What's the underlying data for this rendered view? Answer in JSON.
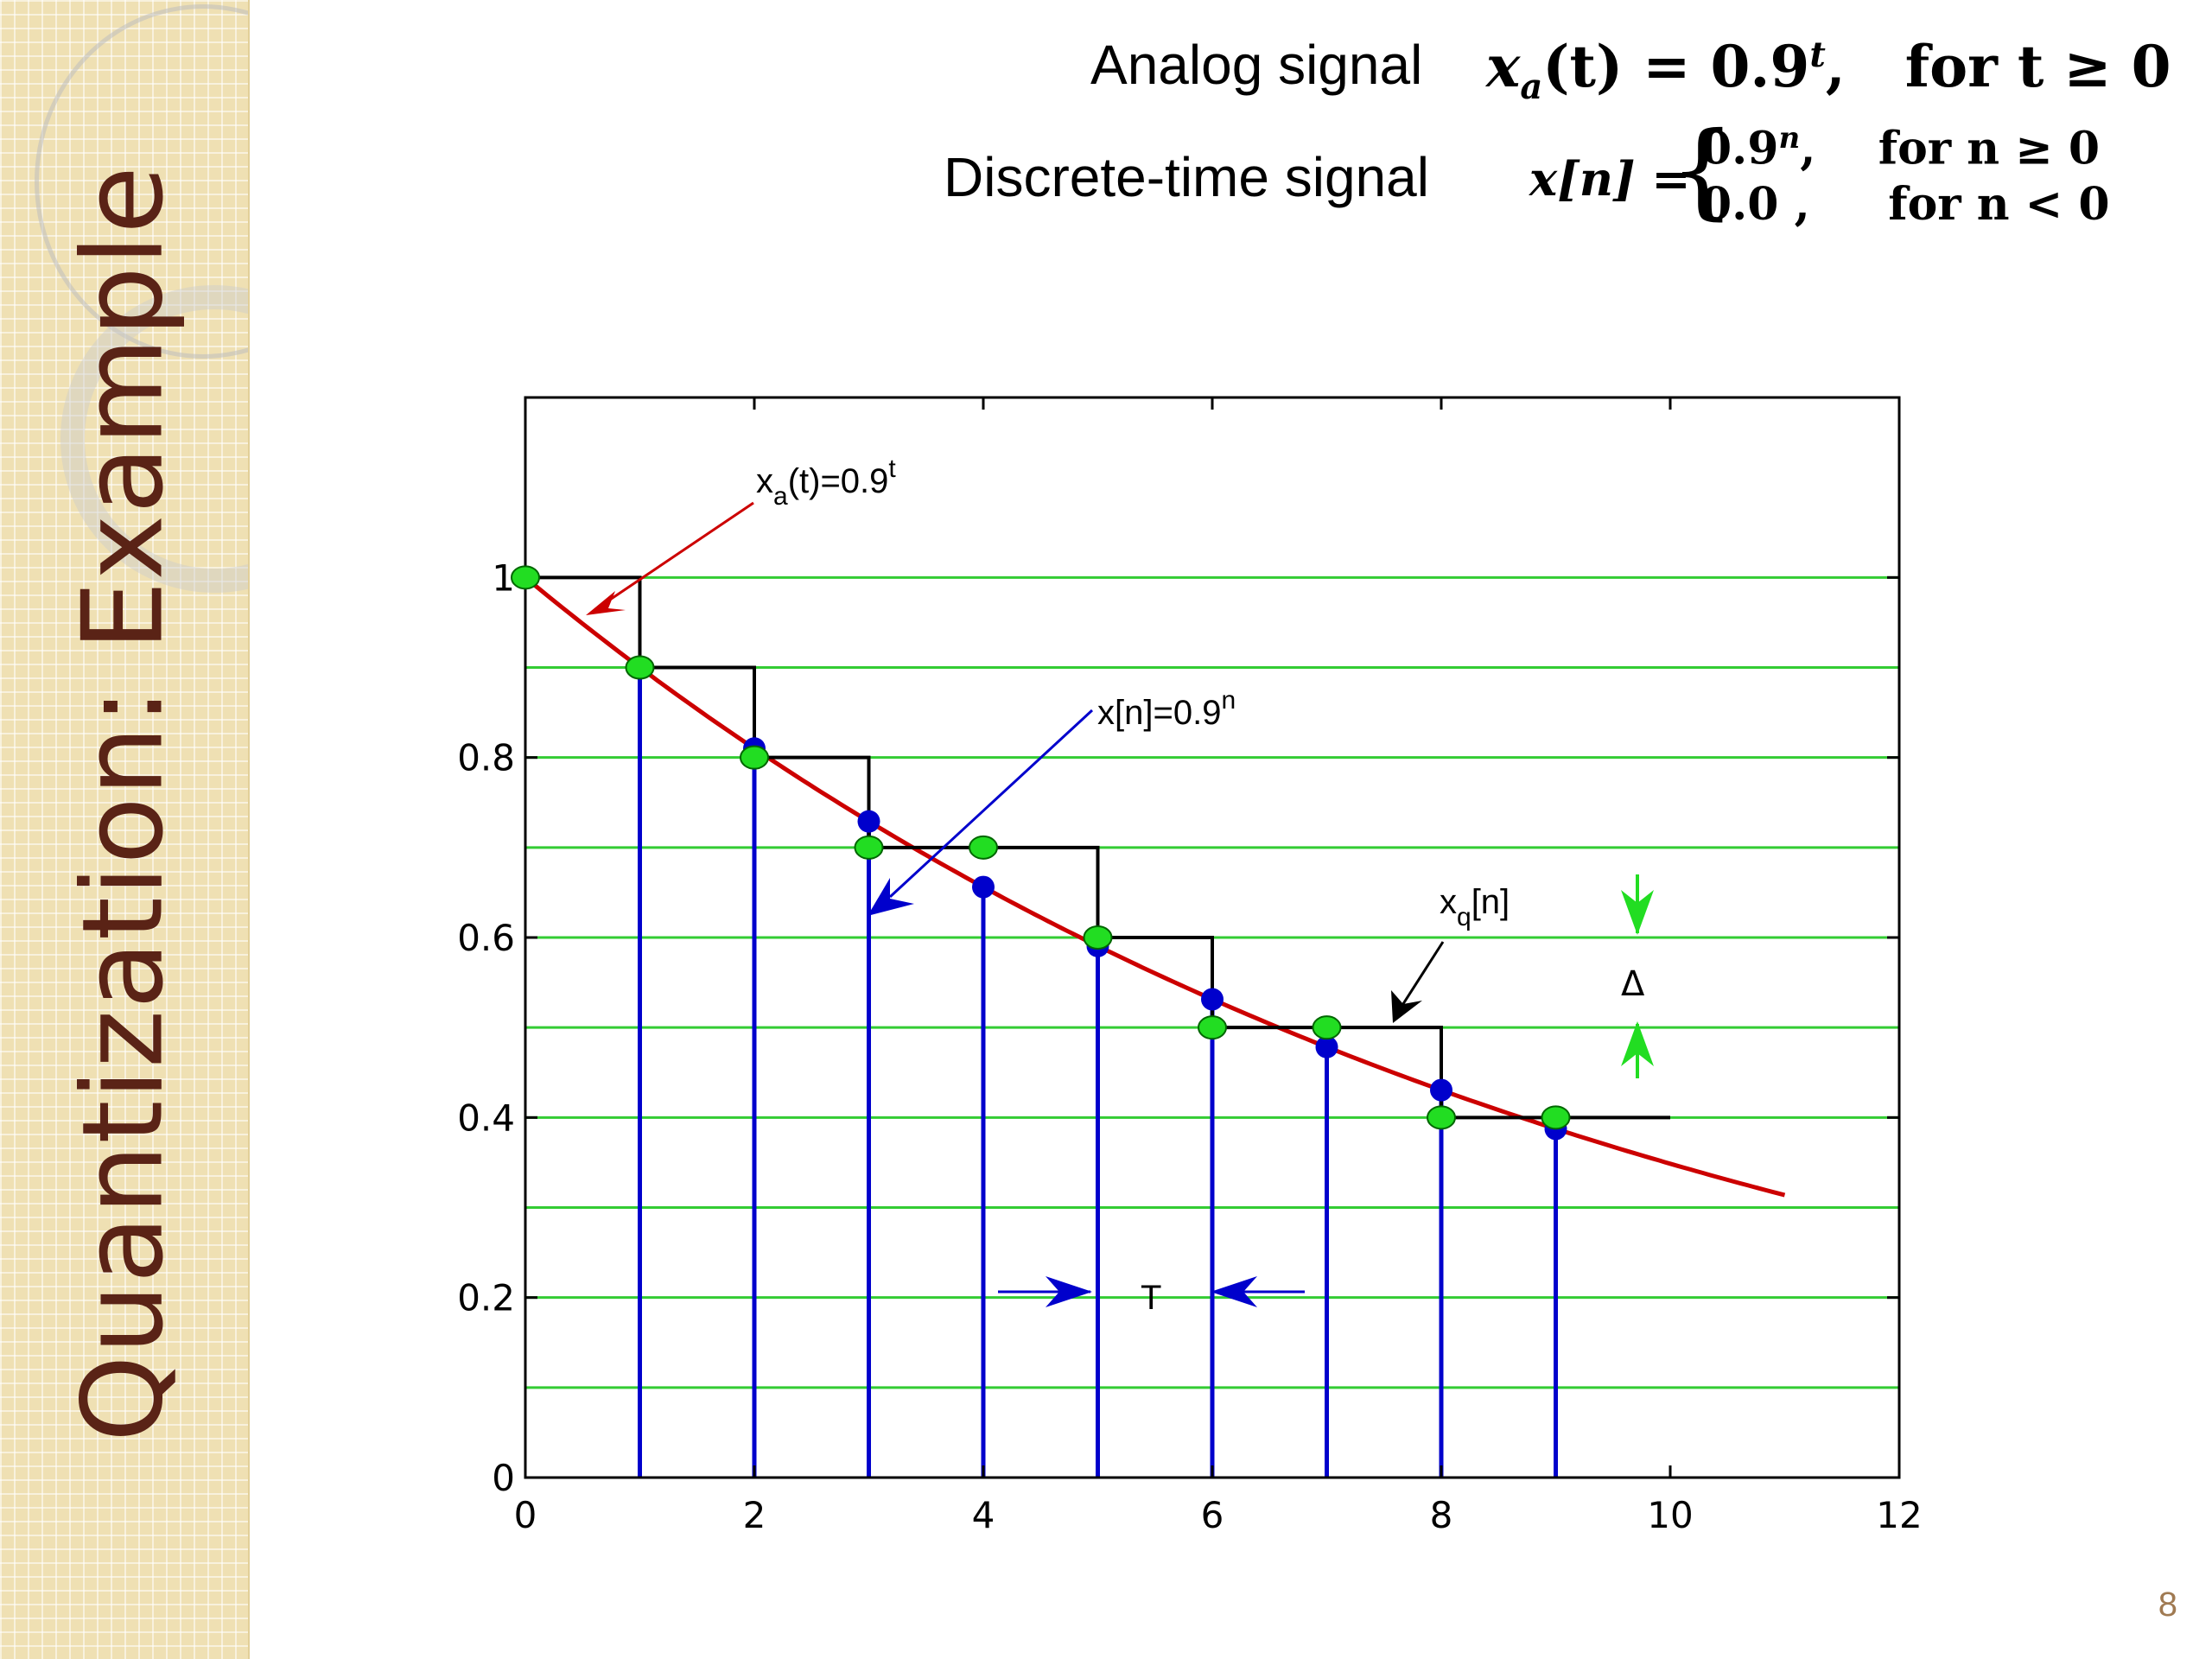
{
  "slide": {
    "title": "Quantization: Example",
    "page_number": "8",
    "analog_label": "Analog signal",
    "analog_eq": {
      "lhs": "x",
      "sub": "a",
      "arg": "(t) = 0.9",
      "sup": "t",
      "cond": "for t ≥ 0"
    },
    "discrete_label": "Discrete-time signal",
    "discrete_eq": {
      "lhs": "x[n] =",
      "case1_val": "0.9",
      "case1_sup": "n",
      "case1_cond": "for n ≥ 0",
      "case2_val": "0.0 ,",
      "case2_cond": "for n < 0"
    }
  },
  "colors": {
    "analog": "#cc0000",
    "discrete": "#0000cc",
    "quantized": "#000000",
    "levels": "#33cc33",
    "samples_q": "#22dd22"
  },
  "chart_data": {
    "type": "line",
    "xlim": [
      0,
      12
    ],
    "ylim": [
      0,
      1.2
    ],
    "xticks": [
      "0",
      "2",
      "4",
      "6",
      "8",
      "10",
      "12"
    ],
    "yticks": [
      "0",
      "0.2",
      "0.4",
      "0.6",
      "0.8",
      "1"
    ],
    "analog": {
      "t_start": 0,
      "t_end": 11,
      "base": 0.9
    },
    "discrete": {
      "n": [
        0,
        1,
        2,
        3,
        4,
        5,
        6,
        7,
        8,
        9
      ],
      "values": [
        1.0,
        0.9,
        0.81,
        0.729,
        0.6561,
        0.5905,
        0.5314,
        0.4783,
        0.4305,
        0.3874
      ]
    },
    "quantized": {
      "n": [
        0,
        1,
        2,
        3,
        4,
        5,
        6,
        7,
        8,
        9
      ],
      "values": [
        1.0,
        0.9,
        0.8,
        0.7,
        0.7,
        0.6,
        0.5,
        0.5,
        0.4,
        0.4
      ],
      "hold_end": 10
    },
    "levels": [
      0.1,
      0.2,
      0.3,
      0.4,
      0.5,
      0.6,
      0.7,
      0.8,
      0.9,
      1.0
    ],
    "annotations": {
      "xa_label": "x",
      "xa_sub": "a",
      "xa_rest": "(t)=0.9",
      "xa_sup": "t",
      "xn_label": "x[n]=0.9",
      "xn_sup": "n",
      "xq_label": "x",
      "xq_sub": "q",
      "xq_rest": "[n]",
      "delta": "Δ",
      "period": "T"
    }
  }
}
